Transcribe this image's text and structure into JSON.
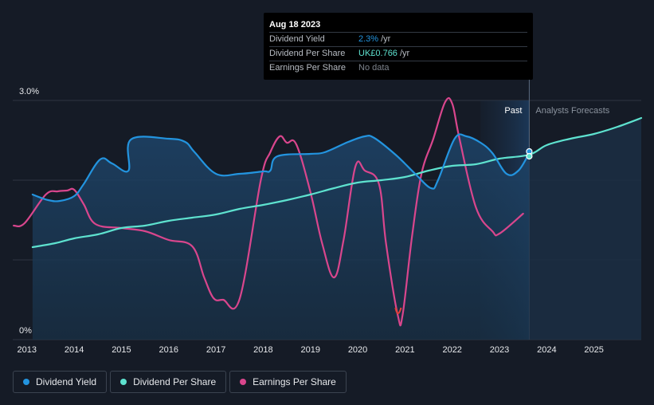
{
  "chart_data": {
    "type": "line",
    "x_ticks": [
      "2013",
      "2014",
      "2015",
      "2016",
      "2017",
      "2018",
      "2019",
      "2020",
      "2021",
      "2022",
      "2023",
      "2024",
      "2025"
    ],
    "y_ticks": [
      {
        "value": 3.0,
        "label": "3.0%"
      },
      {
        "value": 0,
        "label": "0%"
      }
    ],
    "ylim": [
      0,
      3.0
    ],
    "xlim": [
      2012.7,
      2026.0
    ],
    "grid": true,
    "legend_position": "bottom-left",
    "regions": [
      {
        "label": "Past",
        "to": 2023.63
      },
      {
        "label": "Analysts Forecasts",
        "from": 2023.63
      }
    ],
    "series": [
      {
        "name": "Dividend Yield",
        "color": "#2394df",
        "x": [
          2013.12,
          2013.45,
          2013.7,
          2014.0,
          2014.2,
          2014.55,
          2014.8,
          2015.15,
          2015.2,
          2016.0,
          2016.35,
          2016.55,
          2017.0,
          2017.5,
          2018.0,
          2018.15,
          2018.3,
          2019.0,
          2019.3,
          2019.8,
          2020.15,
          2020.35,
          2020.8,
          2021.2,
          2021.55,
          2021.7,
          2022.05,
          2022.3,
          2022.6,
          2022.85,
          2023.15,
          2023.4,
          2023.63
        ],
        "y": [
          1.82,
          1.75,
          1.74,
          1.8,
          1.95,
          2.26,
          2.21,
          2.12,
          2.51,
          2.52,
          2.48,
          2.35,
          2.08,
          2.08,
          2.11,
          2.12,
          2.3,
          2.33,
          2.35,
          2.48,
          2.55,
          2.53,
          2.32,
          2.09,
          1.9,
          2.0,
          2.52,
          2.55,
          2.47,
          2.34,
          2.08,
          2.12,
          2.34
        ]
      },
      {
        "name": "Dividend Per Share",
        "color": "#5ee2cf",
        "x": [
          2013.12,
          2013.6,
          2014.0,
          2014.5,
          2015.0,
          2015.5,
          2016.0,
          2016.5,
          2017.0,
          2017.5,
          2018.0,
          2018.5,
          2019.0,
          2019.5,
          2020.0,
          2020.5,
          2021.0,
          2021.5,
          2022.0,
          2022.5,
          2023.0,
          2023.63,
          2024.0,
          2024.5,
          2025.0,
          2025.5,
          2026.0
        ],
        "y": [
          1.16,
          1.21,
          1.27,
          1.32,
          1.4,
          1.43,
          1.49,
          1.53,
          1.57,
          1.64,
          1.69,
          1.75,
          1.82,
          1.9,
          1.97,
          2.0,
          2.04,
          2.12,
          2.18,
          2.2,
          2.27,
          2.32,
          2.44,
          2.52,
          2.58,
          2.67,
          2.78
        ]
      },
      {
        "name": "Earnings Per Share",
        "color": "#d9468d",
        "x": [
          2012.72,
          2012.95,
          2013.4,
          2013.65,
          2013.85,
          2014.0,
          2014.2,
          2014.45,
          2015.0,
          2015.5,
          2016.0,
          2016.5,
          2016.75,
          2016.95,
          2017.15,
          2017.5,
          2017.95,
          2018.15,
          2018.35,
          2018.5,
          2018.7,
          2019.0,
          2019.25,
          2019.5,
          2019.7,
          2019.95,
          2020.15,
          2020.45,
          2020.6,
          2020.85,
          2020.95,
          2021.15,
          2021.35,
          2021.6,
          2021.85,
          2022.0,
          2022.15,
          2022.5,
          2022.85,
          2023.0,
          2023.5
        ],
        "y": [
          1.43,
          1.46,
          1.82,
          1.86,
          1.87,
          1.88,
          1.7,
          1.45,
          1.4,
          1.36,
          1.25,
          1.17,
          0.78,
          0.52,
          0.5,
          0.51,
          2.0,
          2.35,
          2.55,
          2.47,
          2.45,
          1.85,
          1.2,
          0.78,
          1.25,
          2.17,
          2.12,
          1.95,
          1.2,
          0.3,
          0.31,
          1.3,
          2.08,
          2.52,
          2.98,
          2.96,
          2.53,
          1.66,
          1.36,
          1.33,
          1.58
        ]
      }
    ],
    "highlight": {
      "date": "Aug 18 2023",
      "x": 2023.63,
      "dividend_yield_value": "2.3%",
      "dividend_per_share_value": "UK£0.766"
    }
  },
  "tooltip": {
    "date": "Aug 18 2023",
    "rows": [
      {
        "label": "Dividend Yield",
        "value": "2.3%",
        "unit": "/yr",
        "color": "#2394df"
      },
      {
        "label": "Dividend Per Share",
        "value": "UK£0.766",
        "unit": "/yr",
        "color": "#5ee2cf"
      },
      {
        "label": "Earnings Per Share",
        "value": "No data",
        "unit": "",
        "color": "#7d838c"
      }
    ]
  },
  "legend": [
    {
      "label": "Dividend Yield",
      "color": "#2394df"
    },
    {
      "label": "Dividend Per Share",
      "color": "#5ee2cf"
    },
    {
      "label": "Earnings Per Share",
      "color": "#d9468d"
    }
  ],
  "colors": {
    "background": "#151b26",
    "grid": "#2e3541",
    "past_shade": "#1c3450",
    "divider": "#5b6b80"
  }
}
